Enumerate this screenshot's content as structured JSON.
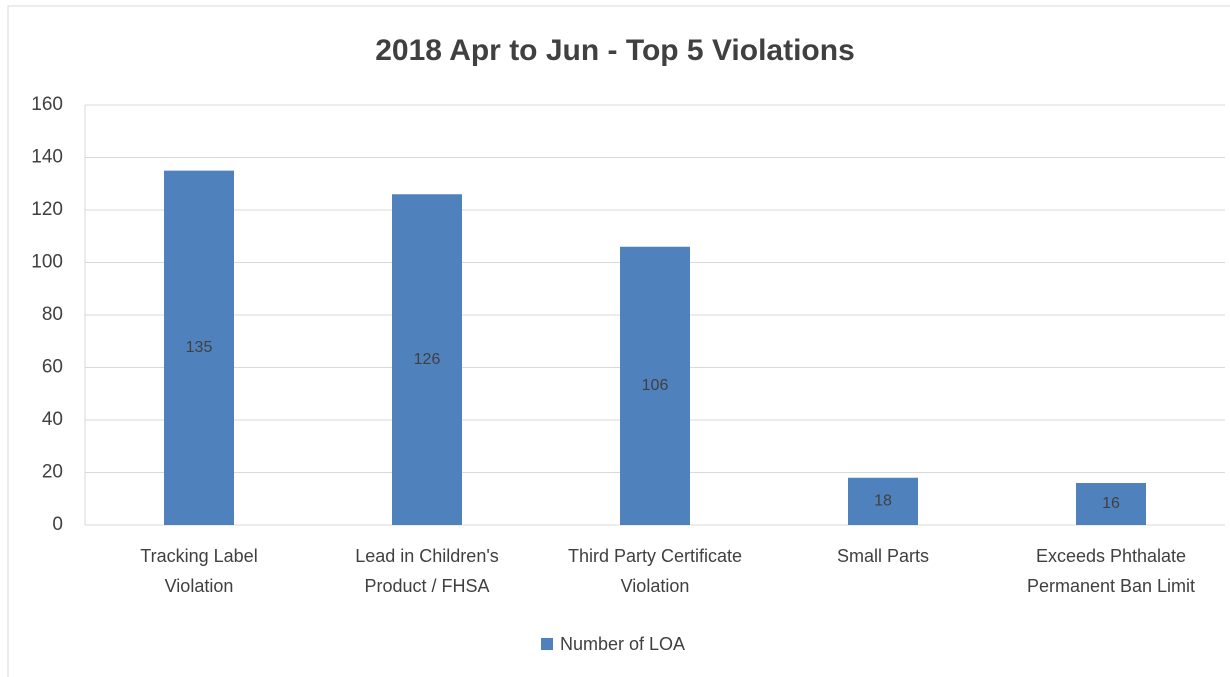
{
  "chart_data": {
    "type": "bar",
    "title": "2018 Apr to Jun - Top 5 Violations",
    "categories": [
      "Tracking Label Violation",
      "Lead in Children's Product / FHSA",
      "Third Party Certificate Violation",
      "Small Parts",
      "Exceeds Phthalate Permanent Ban Limit"
    ],
    "series": [
      {
        "name": "Number of LOA",
        "color": "#4f81bd",
        "values": [
          135,
          126,
          106,
          18,
          16
        ]
      }
    ],
    "ylim": [
      0,
      160
    ],
    "yticks": [
      0,
      20,
      40,
      60,
      80,
      100,
      120,
      140,
      160
    ],
    "grid": true,
    "legend": "bottom"
  }
}
